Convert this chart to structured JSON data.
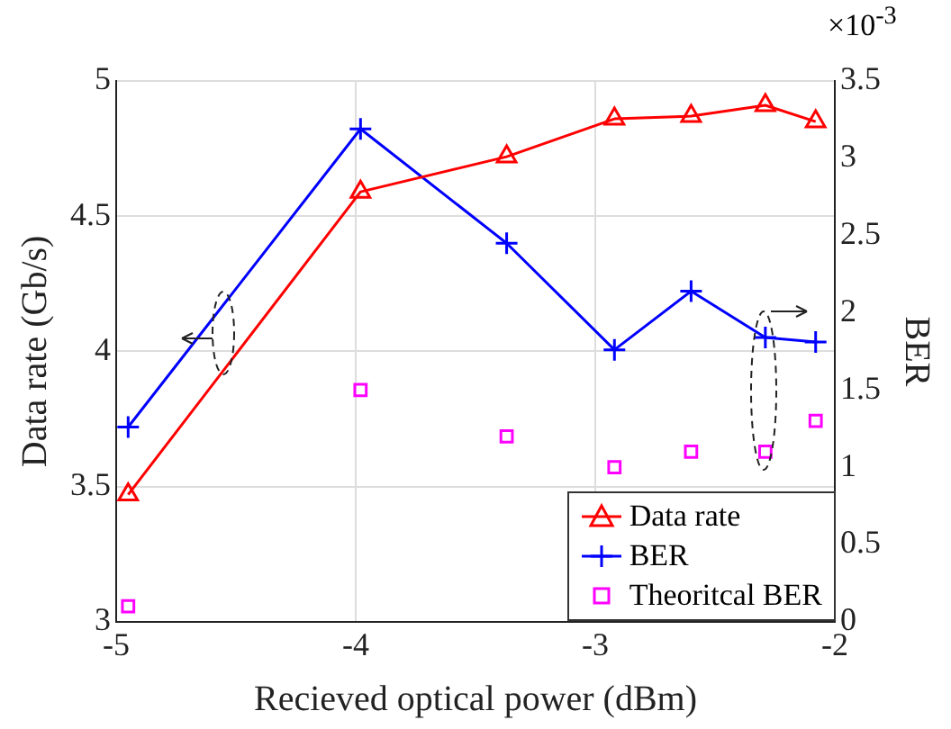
{
  "chart_data": {
    "type": "line",
    "xlabel": "Recieved optical power (dBm)",
    "ylabel": "Data rate (Gb/s)",
    "y2label": "BER",
    "x": [
      -4.95,
      -3.98,
      -3.37,
      -2.92,
      -2.6,
      -2.29,
      -2.08
    ],
    "series": [
      {
        "name": "Data rate",
        "color": "#ff0000",
        "marker": "triangle",
        "values": [
          3.47,
          4.59,
          4.72,
          4.86,
          4.87,
          4.91,
          4.85
        ]
      },
      {
        "name": "BER",
        "color": "#0000ff",
        "marker": "cross",
        "axis": "y2",
        "values": [
          1.26,
          3.19,
          2.45,
          1.76,
          2.14,
          1.84,
          1.81
        ]
      },
      {
        "name": "Theoritcal BER",
        "type": "scatter",
        "color": "#ff00ff",
        "marker": "square",
        "axis": "y2",
        "values": [
          0.1,
          1.5,
          1.2,
          1.0,
          1.1,
          1.1,
          1.3
        ]
      }
    ],
    "xlim": [
      -5,
      -2
    ],
    "xticks": [
      -5,
      -4,
      -3,
      -2
    ],
    "ylim": [
      3,
      5
    ],
    "yticks": [
      3,
      3.5,
      4,
      4.5,
      5
    ],
    "y2lim": [
      0,
      3.5
    ],
    "y2ticks": [
      0,
      0.5,
      1,
      1.5,
      2,
      2.5,
      3,
      3.5
    ],
    "annotations": [
      "×10$^{-3}$"
    ],
    "grid": true,
    "legend": "bottom right"
  }
}
